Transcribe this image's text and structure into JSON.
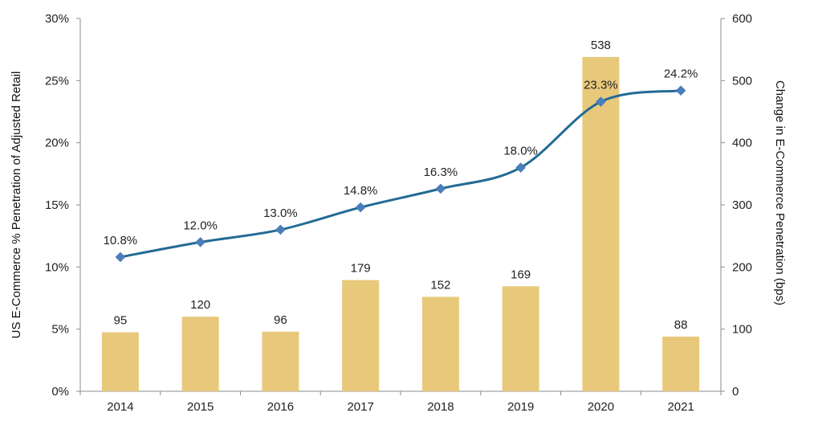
{
  "chart_data": {
    "type": "bar+line",
    "categories": [
      "2014",
      "2015",
      "2016",
      "2017",
      "2018",
      "2019",
      "2020",
      "2021"
    ],
    "series": [
      {
        "type": "bar",
        "axis": "right",
        "values": [
          95,
          120,
          96,
          179,
          152,
          169,
          538,
          88
        ],
        "labels": [
          "95",
          "120",
          "96",
          "179",
          "152",
          "169",
          "538",
          "88"
        ],
        "color": "#E8C97C"
      },
      {
        "type": "line",
        "axis": "left",
        "values": [
          10.8,
          12.0,
          13.0,
          14.8,
          16.3,
          18.0,
          23.3,
          24.2
        ],
        "labels": [
          "10.8%",
          "12.0%",
          "13.0%",
          "14.8%",
          "16.3%",
          "18.0%",
          "23.3%",
          "24.2%"
        ],
        "color": "#236B94",
        "marker_color": "#4A7EBB"
      }
    ],
    "y_left": {
      "label": "US E-Commerce % Penetration of Adjusted Retail",
      "range": [
        0,
        30
      ],
      "ticks": [
        "0%",
        "5%",
        "10%",
        "15%",
        "20%",
        "25%",
        "30%"
      ]
    },
    "y_right": {
      "label": "Change in E-Commerce Penetration (bps)",
      "range": [
        0,
        600
      ],
      "ticks": [
        "0",
        "100",
        "200",
        "300",
        "400",
        "500",
        "600"
      ]
    },
    "grid": false,
    "legend": "none"
  }
}
